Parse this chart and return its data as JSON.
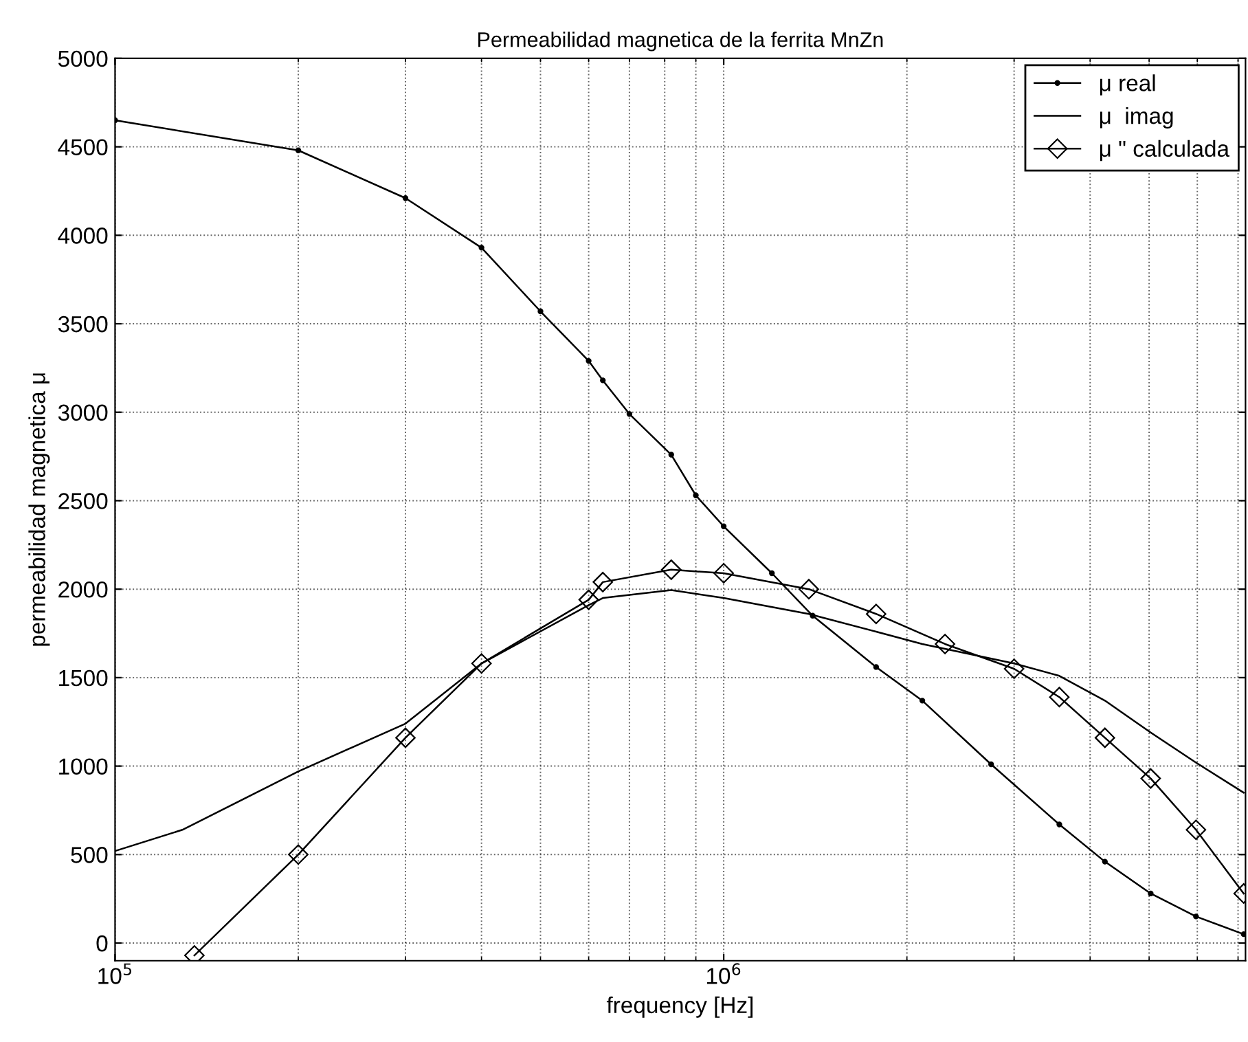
{
  "chart_data": {
    "type": "line",
    "title": "Permeabilidad magnetica de la ferrita MnZn",
    "xlabel": "frequency [Hz]",
    "ylabel": "permeabilidad magnetica μ",
    "log": "x",
    "grid": true,
    "legend": "top right",
    "xlim": [
      100000,
      7200000
    ],
    "xticks": [
      {
        "value": 100000,
        "label": "10$^{5}$"
      },
      {
        "value": 1000000,
        "label": "10$^{6}$"
      }
    ],
    "ylim": [
      -100,
      5000
    ],
    "yticks": [
      0,
      500,
      1000,
      1500,
      2000,
      2500,
      3000,
      3500,
      4000,
      4500,
      5000
    ],
    "series": [
      {
        "name": "μ real",
        "color": "#000000",
        "marker": "circle",
        "x": [
          100000,
          200000,
          300000,
          400000,
          500000,
          600000,
          633000,
          700000,
          820000,
          900000,
          1000000,
          1200000,
          1400000,
          1780000,
          2120000,
          2750000,
          3560000,
          4230000,
          5030000,
          5970000,
          7150000
        ],
        "values": [
          4650,
          4480,
          4210,
          3930,
          3570,
          3290,
          3180,
          2990,
          2760,
          2530,
          2355,
          2090,
          1850,
          1560,
          1370,
          1010,
          670,
          460,
          280,
          150,
          50
        ]
      },
      {
        "name": "μ  imag",
        "color": "#000000",
        "marker": "none",
        "x": [
          100000,
          129000,
          200000,
          300000,
          400000,
          600000,
          633000,
          820000,
          1000000,
          1380000,
          1780000,
          2120000,
          3000000,
          3560000,
          4230000,
          5030000,
          5970000,
          7150000
        ],
        "values": [
          520,
          640,
          970,
          1240,
          1580,
          1910,
          1950,
          1995,
          1950,
          1860,
          1760,
          1690,
          1580,
          1510,
          1370,
          1190,
          1020,
          850
        ]
      },
      {
        "name": "μ \" calculada",
        "color": "#000000",
        "marker": "diamond",
        "x": [
          135000,
          200000,
          300000,
          400000,
          600000,
          633000,
          820000,
          1000000,
          1380000,
          1780000,
          2310000,
          3000000,
          3560000,
          4230000,
          5030000,
          5970000,
          7150000
        ],
        "values": [
          -70,
          500,
          1160,
          1580,
          1940,
          2040,
          2110,
          2090,
          2000,
          1860,
          1690,
          1550,
          1390,
          1160,
          930,
          640,
          280
        ]
      }
    ]
  }
}
